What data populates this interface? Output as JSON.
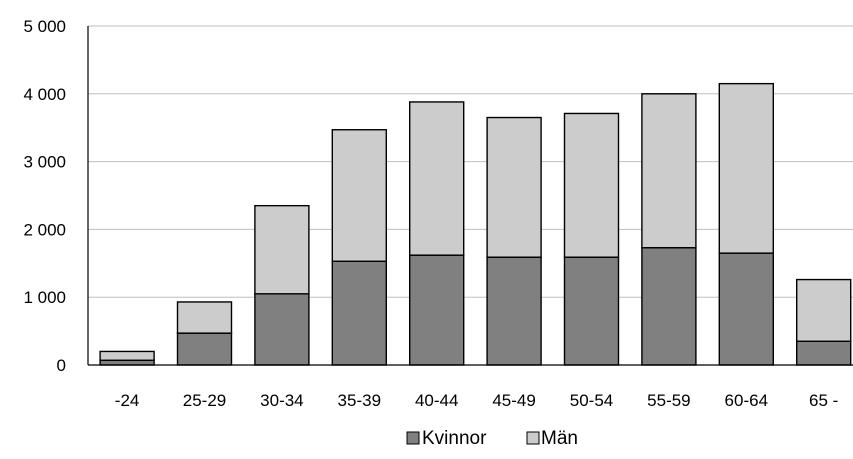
{
  "chart_data": {
    "type": "bar",
    "stacked": true,
    "categories": [
      "-24",
      "25-29",
      "30-34",
      "35-39",
      "40-44",
      "45-49",
      "50-54",
      "55-59",
      "60-64",
      "65 -"
    ],
    "series": [
      {
        "name": "Kvinnor",
        "color": "#808080",
        "values": [
          70,
          470,
          1050,
          1530,
          1620,
          1590,
          1590,
          1730,
          1650,
          350
        ]
      },
      {
        "name": "Män",
        "color": "#cccccc",
        "values": [
          130,
          460,
          1300,
          1940,
          2260,
          2060,
          2120,
          2270,
          2500,
          910
        ]
      }
    ],
    "ylim": [
      0,
      5000
    ],
    "yticks": [
      0,
      1000,
      2000,
      3000,
      4000,
      5000
    ],
    "ytick_labels": [
      "0",
      "1 000",
      "2 000",
      "3 000",
      "4 000",
      "5 000"
    ],
    "grid": true,
    "legend": "bottom",
    "title": "",
    "xlabel": "",
    "ylabel": ""
  }
}
